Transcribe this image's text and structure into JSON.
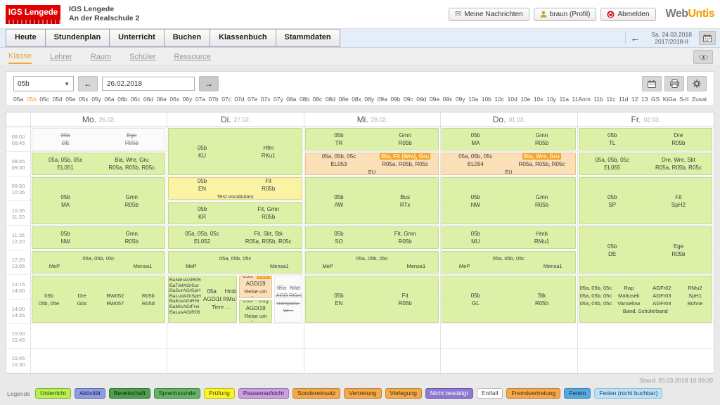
{
  "header": {
    "logo": {
      "text": "IGS Lengede"
    },
    "school": {
      "line1": "IGS Lengede",
      "line2": "An der Realschule 2"
    },
    "buttons": {
      "messages": "Meine Nachrichten",
      "profile": "braun (Profil)",
      "logout": "Abmelden"
    },
    "brand": {
      "part1": "Web",
      "part2": "Untis"
    }
  },
  "nav": {
    "tabs": [
      "Heute",
      "Stundenplan",
      "Unterricht",
      "Buchen",
      "Klassenbuch",
      "Stammdaten"
    ],
    "date_line1": "Sa. 24.03.2018",
    "date_line2": "2017/2018-II"
  },
  "subnav": {
    "items": [
      "Klasse",
      "Lehrer",
      "Raum",
      "Schüler",
      "Ressource"
    ],
    "active": "Klasse"
  },
  "toolbar": {
    "class_selected": "05b",
    "date_value": "26.02.2018",
    "active_class": "05b",
    "classes": [
      "05a",
      "05b",
      "05c",
      "05d",
      "05e",
      "05x",
      "05y",
      "06a",
      "06b",
      "06c",
      "06d",
      "06e",
      "06x",
      "06y",
      "07a",
      "07b",
      "07c",
      "07d",
      "07e",
      "07x",
      "07y",
      "08a",
      "08b",
      "08c",
      "08d",
      "08e",
      "08x",
      "08y",
      "09a",
      "09b",
      "09c",
      "09d",
      "09e",
      "09x",
      "09y",
      "10a",
      "10b",
      "10c",
      "10d",
      "10e",
      "10x",
      "10y",
      "11a",
      "11Anm",
      "11b",
      "11c",
      "11d",
      "12",
      "13",
      "GS",
      "KiGa",
      "S-II",
      "Zusatz"
    ]
  },
  "grid": {
    "days": [
      {
        "name": "Mo.",
        "date": "26.02."
      },
      {
        "name": "Di.",
        "date": "27.02."
      },
      {
        "name": "Mi.",
        "date": "28.02."
      },
      {
        "name": "Do.",
        "date": "01.03."
      },
      {
        "name": "Fr.",
        "date": "02.03."
      }
    ],
    "times": [
      [
        "08:00",
        "08:45"
      ],
      [
        "08:45",
        "09:30"
      ],
      [
        "09:50",
        "10:35"
      ],
      [
        "10:35",
        "11:20"
      ],
      [
        "11:35",
        "12:20"
      ],
      [
        "12:20",
        "13:05"
      ],
      [
        "13:15",
        "14:00"
      ],
      [
        "14:00",
        "14:45"
      ],
      [
        "15:00",
        "15:45"
      ],
      [
        "15:45",
        "16:30"
      ]
    ],
    "lessons": [
      {
        "d": 0,
        "r": 0,
        "s": 1,
        "t": "cancelled",
        "lines": [
          [
            "05b",
            "Ege"
          ],
          [
            "DE",
            "R05b"
          ]
        ]
      },
      {
        "d": 0,
        "r": 1,
        "s": 1,
        "t": "normal",
        "lines": [
          [
            "05a, 05b, 05c",
            "Bia, Wre, Gru"
          ],
          [
            "EL051",
            "R05a, R05b, R05c"
          ]
        ]
      },
      {
        "d": 0,
        "r": 2,
        "s": 2,
        "t": "normal",
        "lines": [
          [
            "05b",
            "Gmn"
          ],
          [
            "MA",
            "R05b"
          ]
        ]
      },
      {
        "d": 0,
        "r": 4,
        "s": 1,
        "t": "normal",
        "lines": [
          [
            "05b",
            "Gmn"
          ],
          [
            "NW",
            "R05b"
          ]
        ]
      },
      {
        "d": 0,
        "r": 5,
        "s": 1,
        "t": "normal",
        "lines": [
          [
            "",
            "05a, 05b, 05c",
            ""
          ],
          [
            "MeP",
            "",
            "Mensa1"
          ]
        ]
      },
      {
        "d": 0,
        "r": 6,
        "s": 2,
        "t": "normal",
        "lines": [
          [
            "05b",
            "Dre",
            "RW052",
            "R05b"
          ],
          [
            "05b, 05e",
            "Gbs",
            "RW057",
            "R05d"
          ]
        ]
      },
      {
        "d": 1,
        "r": 0,
        "s": 2,
        "t": "normal",
        "lines": [
          [
            "05b",
            "Hfm"
          ],
          [
            "KU",
            "RKu1"
          ]
        ]
      },
      {
        "d": 1,
        "r": 2,
        "s": 1,
        "t": "exam",
        "lines": [
          [
            "05b",
            "Fit"
          ],
          [
            "EN",
            "R05b"
          ]
        ],
        "note": "Test vocabulary"
      },
      {
        "d": 1,
        "r": 3,
        "s": 1,
        "t": "normal",
        "lines": [
          [
            "05b",
            "Fit, Gmn"
          ],
          [
            "KR",
            "R05b"
          ]
        ]
      },
      {
        "d": 1,
        "r": 4,
        "s": 1,
        "t": "normal",
        "lines": [
          [
            "05a, 05b, 05c",
            "Fit, Skt, Stk"
          ],
          [
            "EL052",
            "R05a, R05b, R05c"
          ]
        ]
      },
      {
        "d": 1,
        "r": 5,
        "s": 1,
        "t": "normal",
        "lines": [
          [
            "",
            "05a, 05b, 05c",
            ""
          ],
          [
            "MeP",
            "",
            "Mensa1"
          ]
        ]
      },
      {
        "d": 1,
        "r": 6,
        "s": 2,
        "t": "normal",
        "w": 0.52,
        "list": [
          "05aNimAGIR05",
          "05aTiefAGISur",
          "05aSurAGISpH",
          "05aLudAGISpH",
          "05aKreAGIRHl",
          "05aMicAGIFrei",
          "05aLesAGIR06",
          "..."
        ],
        "lines": [
          [
            "05a",
            "Hmb"
          ],
          [
            "AGDi18",
            "RMu1"
          ]
        ],
        "note": "Tiere …"
      },
      {
        "d": 1,
        "r": 6,
        "s": 1,
        "t": "subst",
        "x": 0.52,
        "w": 0.26,
        "lines": [
          [
            "05a",
            {
              "t": "??? (Bu",
              "hl": true
            }
          ],
          [
            "AGDi19"
          ]
        ],
        "note": "Reise um die…"
      },
      {
        "d": 1,
        "r": 7,
        "s": 1,
        "t": "normal",
        "x": 0.52,
        "w": 0.26,
        "lines": [
          [
            "05a",
            "Bug"
          ],
          [
            "AGDi19"
          ]
        ],
        "note": "Reise um die…"
      },
      {
        "d": 1,
        "r": 6,
        "s": 2,
        "t": "cancelled",
        "x": 0.78,
        "w": 0.22,
        "lines": [
          [
            "05a",
            "Näd"
          ],
          [
            "AGDi02",
            "RCe2"
          ]
        ],
        "note": "Hörspiele, W…"
      },
      {
        "d": 2,
        "r": 0,
        "s": 1,
        "t": "normal",
        "lines": [
          [
            "05b",
            "Gmn"
          ],
          [
            "TR",
            "R05b"
          ]
        ]
      },
      {
        "d": 2,
        "r": 1,
        "s": 1,
        "t": "subst",
        "lines": [
          [
            "05a, 05b, 05c",
            {
              "t": "Bia, Fit (Wre), Gru",
              "hl": true
            }
          ],
          [
            "EL053",
            "R05a, R05b, R05c"
          ]
        ],
        "note": "EU"
      },
      {
        "d": 2,
        "r": 2,
        "s": 2,
        "t": "normal",
        "lines": [
          [
            "05b",
            "Bus"
          ],
          [
            "AW",
            "RTx"
          ]
        ]
      },
      {
        "d": 2,
        "r": 4,
        "s": 1,
        "t": "normal",
        "lines": [
          [
            "05b",
            "Fit, Gmn"
          ],
          [
            "SO",
            "R05b"
          ]
        ]
      },
      {
        "d": 2,
        "r": 5,
        "s": 1,
        "t": "normal",
        "lines": [
          [
            "",
            "05a, 05b, 05c",
            ""
          ],
          [
            "MeP",
            "",
            "Mensa1"
          ]
        ]
      },
      {
        "d": 2,
        "r": 6,
        "s": 2,
        "t": "normal",
        "lines": [
          [
            "05b",
            "Fit"
          ],
          [
            "EN",
            "R05b"
          ]
        ]
      },
      {
        "d": 3,
        "r": 0,
        "s": 1,
        "t": "normal",
        "lines": [
          [
            "05b",
            "Gmn"
          ],
          [
            "MA",
            "R05b"
          ]
        ]
      },
      {
        "d": 3,
        "r": 1,
        "s": 1,
        "t": "subst",
        "lines": [
          [
            "05a, 05b, 05c",
            {
              "t": "Bia, Wre, Gru",
              "hl": true
            }
          ],
          [
            "EL054",
            "R05a, R05b, R05c"
          ]
        ],
        "note": "EU"
      },
      {
        "d": 3,
        "r": 2,
        "s": 2,
        "t": "normal",
        "lines": [
          [
            "05b",
            "Gmn"
          ],
          [
            "NW",
            "R05b"
          ]
        ]
      },
      {
        "d": 3,
        "r": 4,
        "s": 1,
        "t": "normal",
        "lines": [
          [
            "05b",
            "Hmb"
          ],
          [
            "MU",
            "RMu1"
          ]
        ]
      },
      {
        "d": 3,
        "r": 5,
        "s": 1,
        "t": "normal",
        "lines": [
          [
            "",
            "05a, 05b, 05c",
            ""
          ],
          [
            "MeP",
            "",
            "Mensa1"
          ]
        ]
      },
      {
        "d": 3,
        "r": 6,
        "s": 2,
        "t": "normal",
        "lines": [
          [
            "05b",
            "Stk"
          ],
          [
            "GL",
            "R05b"
          ]
        ]
      },
      {
        "d": 4,
        "r": 0,
        "s": 1,
        "t": "normal",
        "lines": [
          [
            "05b",
            "Dre"
          ],
          [
            "TL",
            "R05b"
          ]
        ]
      },
      {
        "d": 4,
        "r": 1,
        "s": 1,
        "t": "normal",
        "lines": [
          [
            "05a, 05b, 05c",
            "Dre, Wre, Skt"
          ],
          [
            "EL055",
            "R05a, R05b, R05c"
          ]
        ]
      },
      {
        "d": 4,
        "r": 2,
        "s": 2,
        "t": "normal",
        "lines": [
          [
            "05b",
            "Fit"
          ],
          [
            "SP",
            "SpH2"
          ]
        ]
      },
      {
        "d": 4,
        "r": 4,
        "s": 2,
        "t": "normal",
        "lines": [
          [
            "05b",
            "Ege"
          ],
          [
            "DE",
            "R05b"
          ]
        ]
      },
      {
        "d": 4,
        "r": 6,
        "s": 2,
        "t": "normal",
        "lines": [
          [
            "05a, 05b, 05c",
            "Rap",
            "AGFr02",
            "RMu2"
          ],
          [
            "05a, 05b, 05c",
            "Mattusek",
            "AGFr03",
            "SpH1"
          ],
          [
            "05a, 05b, 05c",
            "Vanselow",
            "AGFr04",
            "Bühne"
          ]
        ],
        "note": "Band, Schülerband"
      }
    ]
  },
  "legend": {
    "label": "Legende",
    "items": [
      {
        "label": "Unterricht",
        "bg": "#b9ee55",
        "border": "#86b32d",
        "text": "#234d00"
      },
      {
        "label": "Aktivität",
        "bg": "#8f9bdb",
        "border": "#5f6cc0",
        "text": "#101d4d"
      },
      {
        "label": "Bereitschaft",
        "bg": "#4f9d50",
        "border": "#2f7d30",
        "text": "#06290a"
      },
      {
        "label": "Sprechstunde",
        "bg": "#67b067",
        "border": "#3f8a3f",
        "text": "#0b3a0b"
      },
      {
        "label": "Prüfung",
        "bg": "#f9f32a",
        "border": "#c9bd00",
        "text": "#4a4000"
      },
      {
        "label": "Pausenaufsicht",
        "bg": "#c9a0dd",
        "border": "#a16dbd",
        "text": "#3a1250"
      },
      {
        "label": "Sondereinsatz",
        "bg": "#f0a94c",
        "border": "#c8832a",
        "text": "#4d2c00"
      },
      {
        "label": "Vertretung",
        "bg": "#f0a94c",
        "border": "#c8832a",
        "text": "#4d2c00"
      },
      {
        "label": "Verlegung",
        "bg": "#f0a94c",
        "border": "#c8832a",
        "text": "#4d2c00"
      },
      {
        "label": "Nicht bestätigt",
        "bg": "#8d79cf",
        "border": "#6a56ad",
        "text": "#ffffff"
      },
      {
        "label": "Entfall",
        "bg": "#ffffff",
        "border": "#bbbbbb",
        "text": "#444444"
      },
      {
        "label": "Fremdvertretung",
        "bg": "#f0a94c",
        "border": "#c8832a",
        "text": "#4d2c00"
      },
      {
        "label": "Ferien",
        "bg": "#57a8dd",
        "border": "#3a85bb",
        "text": "#0b2f4d"
      },
      {
        "label": "Ferien (nicht buchbar)",
        "bg": "#bfe0f4",
        "border": "#8fc0e0",
        "text": "#1d4766"
      }
    ]
  },
  "status": {
    "stand": "Stand: 20.03.2018 10:39:20"
  }
}
